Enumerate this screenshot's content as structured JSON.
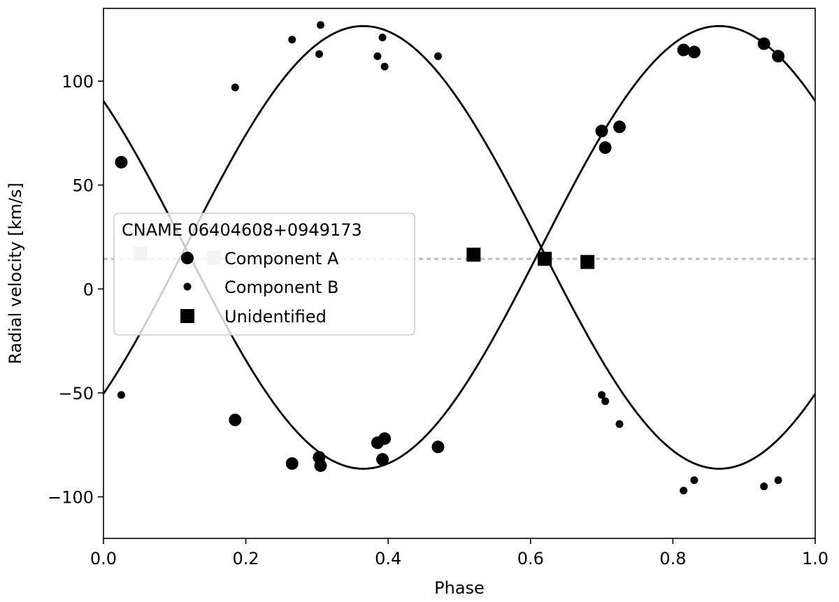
{
  "chart_data": {
    "type": "scatter",
    "title": "",
    "xlabel": "Phase",
    "ylabel": "Radial velocity [km/s]",
    "xlim": [
      0.0,
      1.0
    ],
    "ylim": [
      -120,
      135
    ],
    "xticks": [
      0.0,
      0.2,
      0.4,
      0.6,
      0.8,
      1.0
    ],
    "xtick_labels": [
      "0.0",
      "0.2",
      "0.4",
      "0.6",
      "0.8",
      "1.0"
    ],
    "yticks": [
      -100,
      -50,
      0,
      50,
      100
    ],
    "ytick_labels": [
      "−100",
      "−50",
      "0",
      "50",
      "100"
    ],
    "grid": false,
    "legend": {
      "title": "CNAME 06404608+0949173",
      "placement": "center-left",
      "entries": [
        "Component A",
        "Component B",
        "Unidentified"
      ]
    },
    "systemic_velocity": 14.5,
    "series": [
      {
        "name": "Component A",
        "marker": "large-circle",
        "color": "#000000",
        "points": [
          [
            0.025,
            61
          ],
          [
            0.185,
            -63
          ],
          [
            0.265,
            -84
          ],
          [
            0.303,
            -81
          ],
          [
            0.305,
            -85
          ],
          [
            0.385,
            -74
          ],
          [
            0.392,
            -82
          ],
          [
            0.395,
            -72
          ],
          [
            0.47,
            -76
          ],
          [
            0.7,
            76
          ],
          [
            0.705,
            68
          ],
          [
            0.725,
            78
          ],
          [
            0.815,
            115
          ],
          [
            0.83,
            114
          ],
          [
            0.928,
            118
          ],
          [
            0.948,
            112
          ]
        ]
      },
      {
        "name": "Component B",
        "marker": "small-circle",
        "color": "#000000",
        "points": [
          [
            0.025,
            -51
          ],
          [
            0.185,
            97
          ],
          [
            0.265,
            120
          ],
          [
            0.303,
            113
          ],
          [
            0.305,
            127
          ],
          [
            0.385,
            112
          ],
          [
            0.392,
            121
          ],
          [
            0.395,
            107
          ],
          [
            0.47,
            112
          ],
          [
            0.7,
            -51
          ],
          [
            0.705,
            -54
          ],
          [
            0.725,
            -65
          ],
          [
            0.815,
            -97
          ],
          [
            0.83,
            -92
          ],
          [
            0.928,
            -95
          ],
          [
            0.948,
            -92
          ]
        ]
      },
      {
        "name": "Unidentified",
        "marker": "square",
        "color": "#000000",
        "points": [
          [
            0.52,
            16.5
          ],
          [
            0.62,
            14.5
          ],
          [
            0.68,
            13
          ]
        ]
      },
      {
        "marker": "square",
        "color": "#c8c8c8",
        "points": [
          [
            0.052,
            17
          ],
          [
            0.155,
            15
          ]
        ]
      }
    ],
    "curves": [
      {
        "name": "Component A fit",
        "gamma": 20,
        "K": 106.5,
        "phase_offset": 0.865
      },
      {
        "name": "Component B fit",
        "gamma": 20,
        "K": -106.5,
        "phase_offset": 0.865
      }
    ]
  }
}
